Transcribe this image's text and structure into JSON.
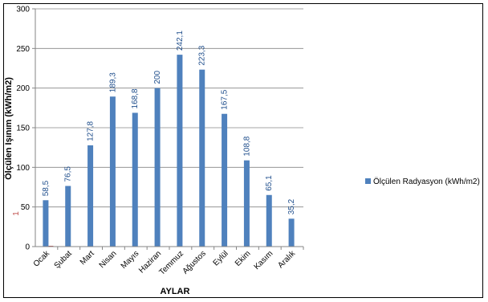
{
  "chart_data": {
    "type": "bar",
    "categories": [
      "Ocak",
      "Şubat",
      "Mart",
      "Nisan",
      "Mayıs",
      "Haziran",
      "Temmuz",
      "Ağustos",
      "Eylül",
      "Ekim",
      "Kasım",
      "Aralık"
    ],
    "series": [
      {
        "name": "Ölçülen Radyasyon (kWh/m2)",
        "values": [
          58.5,
          76.5,
          127.8,
          189.3,
          168.8,
          200,
          242.1,
          223.3,
          167.5,
          108.8,
          65.1,
          35.2
        ],
        "color": "#4f81bd"
      }
    ],
    "data_labels": [
      "58,5",
      "76,5",
      "127,8",
      "189,3",
      "168,8",
      "200",
      "242,1",
      "223,3",
      "167,5",
      "108,8",
      "65,1",
      "35,2"
    ],
    "secondary_bar_values": [
      1,
      0,
      0,
      0,
      0,
      0,
      0,
      0,
      0,
      0,
      0,
      0
    ],
    "secondary_bar_color": "#c0504d",
    "extra_label": "1",
    "yticks": [
      "0",
      "50",
      "100",
      "150",
      "200",
      "250",
      "300"
    ],
    "ylim": [
      0,
      300
    ],
    "xlabel": "AYLAR",
    "ylabel": "Ölçülen Işınım  (kWh/m2)",
    "grid": true,
    "legend_position": "right"
  }
}
